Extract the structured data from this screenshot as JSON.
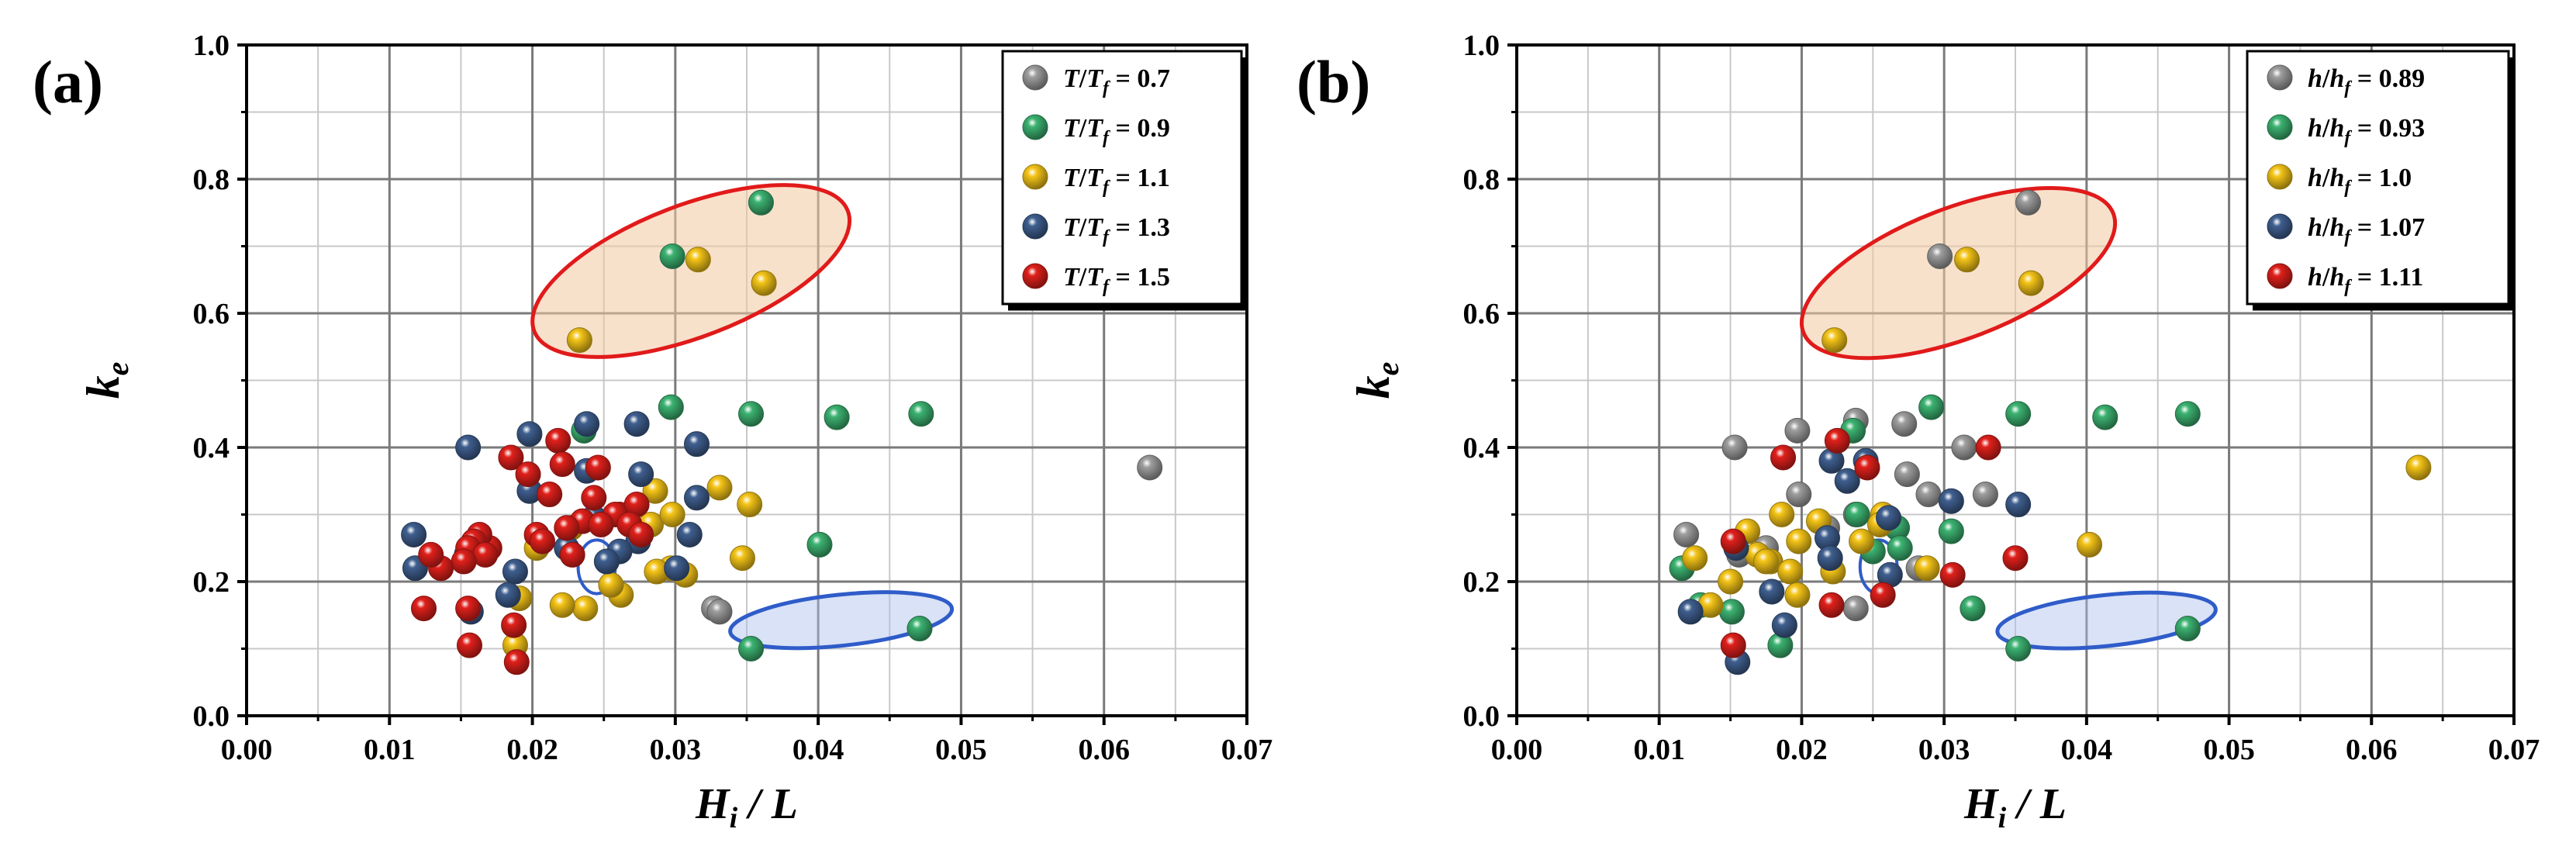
{
  "chart_data": [
    {
      "type": "scatter",
      "panel_label": "(a)",
      "xlabel": "H_i / L",
      "ylabel": "k_e",
      "xlim": [
        0.0,
        0.07
      ],
      "ylim": [
        0.0,
        1.0
      ],
      "xticks": [
        "0.00",
        "0.01",
        "0.02",
        "0.03",
        "0.04",
        "0.05",
        "0.06",
        "0.07"
      ],
      "yticks": [
        "0.0",
        "0.2",
        "0.4",
        "0.6",
        "0.8",
        "1.0"
      ],
      "grid": true,
      "legend_position": "top-right",
      "legend_var": "T",
      "legend_sub": "f",
      "series": [
        {
          "name": "T/Tf = 0.7",
          "legend_value": "= 0.7",
          "color": "#9e9e9e",
          "x": [
            0.0632,
            0.0327,
            0.0331
          ],
          "y": [
            0.37,
            0.16,
            0.155
          ]
        },
        {
          "name": "T/Tf = 0.9",
          "legend_value": "= 0.9",
          "color": "#3cb371",
          "x": [
            0.036,
            0.0298,
            0.0297,
            0.0353,
            0.0413,
            0.0472,
            0.0236,
            0.0401,
            0.0471,
            0.0353
          ],
          "y": [
            0.765,
            0.685,
            0.46,
            0.45,
            0.445,
            0.45,
            0.425,
            0.255,
            0.13,
            0.1
          ],
          "bold_legend": false
        },
        {
          "name": "T/Tf = 1.1",
          "legend_value": "= 1.1",
          "color": "#f5c518",
          "x": [
            0.0233,
            0.0316,
            0.0362,
            0.0286,
            0.0331,
            0.0352,
            0.0283,
            0.0298,
            0.0347,
            0.0307,
            0.0262,
            0.0255,
            0.0237,
            0.0221,
            0.0188,
            0.0191,
            0.0203,
            0.0227,
            0.0297,
            0.0287
          ],
          "y": [
            0.56,
            0.68,
            0.645,
            0.335,
            0.34,
            0.315,
            0.285,
            0.3,
            0.235,
            0.21,
            0.18,
            0.195,
            0.16,
            0.165,
            0.105,
            0.175,
            0.25,
            0.28,
            0.22,
            0.215
          ]
        },
        {
          "name": "T/Tf = 1.3",
          "legend_value": "= 1.3",
          "color": "#3f5f8f",
          "x": [
            0.0155,
            0.0198,
            0.0238,
            0.0273,
            0.0315,
            0.0238,
            0.0276,
            0.0198,
            0.0315,
            0.0117,
            0.031,
            0.0118,
            0.0157,
            0.0188,
            0.0183,
            0.0154,
            0.0274,
            0.0224,
            0.0243,
            0.0301,
            0.0261,
            0.0252
          ],
          "y": [
            0.4,
            0.42,
            0.435,
            0.435,
            0.405,
            0.365,
            0.36,
            0.335,
            0.325,
            0.27,
            0.27,
            0.22,
            0.155,
            0.215,
            0.18,
            0.24,
            0.26,
            0.25,
            0.295,
            0.22,
            0.245,
            0.23
          ]
        },
        {
          "name": "T/Tf = 1.5",
          "legend_value": "= 1.5",
          "color": "#e0201b",
          "x": [
            0.0218,
            0.0185,
            0.0221,
            0.0246,
            0.0197,
            0.0212,
            0.0243,
            0.0261,
            0.0273,
            0.0235,
            0.0224,
            0.017,
            0.0163,
            0.0159,
            0.0155,
            0.0167,
            0.0152,
            0.0136,
            0.0129,
            0.0124,
            0.0155,
            0.0156,
            0.0187,
            0.0189,
            0.0203,
            0.0258,
            0.0268,
            0.0276,
            0.0207,
            0.0228,
            0.0248
          ],
          "y": [
            0.41,
            0.385,
            0.375,
            0.37,
            0.36,
            0.33,
            0.325,
            0.3,
            0.315,
            0.29,
            0.28,
            0.25,
            0.27,
            0.26,
            0.25,
            0.24,
            0.23,
            0.22,
            0.24,
            0.16,
            0.16,
            0.105,
            0.135,
            0.08,
            0.27,
            0.3,
            0.285,
            0.27,
            0.26,
            0.24,
            0.285
          ]
        }
      ],
      "ellipses": [
        {
          "color": "red",
          "cx": 0.0311,
          "cy": 0.663,
          "rx": 0.01175,
          "ry": 0.098,
          "rotate": -21
        },
        {
          "color": "blue",
          "cx": 0.0416,
          "cy": 0.1425,
          "rx": 0.0078,
          "ry": 0.038,
          "rotate": -6
        },
        {
          "color": "blue-small",
          "cx": 0.0245,
          "cy": 0.222,
          "rx": 0.0013,
          "ry": 0.04,
          "rotate": 0
        }
      ]
    },
    {
      "type": "scatter",
      "panel_label": "(b)",
      "xlabel": "H_i / L",
      "ylabel": "k_e",
      "xlim": [
        0.0,
        0.07
      ],
      "ylim": [
        0.0,
        1.0
      ],
      "xticks": [
        "0.00",
        "0.01",
        "0.02",
        "0.03",
        "0.04",
        "0.05",
        "0.06",
        "0.07"
      ],
      "yticks": [
        "0.0",
        "0.2",
        "0.4",
        "0.6",
        "0.8",
        "1.0"
      ],
      "grid": true,
      "legend_position": "top-right",
      "legend_var": "h",
      "legend_sub": "f",
      "series": [
        {
          "name": "h/hf = 0.89",
          "legend_value": "= 0.89",
          "color": "#9e9e9e",
          "x": [
            0.0359,
            0.0297,
            0.0197,
            0.0238,
            0.0272,
            0.0314,
            0.0198,
            0.0274,
            0.0289,
            0.0238,
            0.0119,
            0.0156,
            0.0175,
            0.0238,
            0.0329,
            0.0218,
            0.0282,
            0.0153
          ],
          "y": [
            0.765,
            0.685,
            0.425,
            0.44,
            0.435,
            0.4,
            0.33,
            0.36,
            0.33,
            0.3,
            0.27,
            0.24,
            0.25,
            0.16,
            0.33,
            0.28,
            0.22,
            0.4
          ]
        },
        {
          "name": "h/hf = 0.93",
          "legend_value": "= 0.93",
          "color": "#3cb371",
          "x": [
            0.0291,
            0.0352,
            0.0413,
            0.0471,
            0.0236,
            0.0305,
            0.0239,
            0.0267,
            0.0269,
            0.0116,
            0.0185,
            0.0151,
            0.032,
            0.0352,
            0.0471,
            0.0129,
            0.025
          ],
          "y": [
            0.46,
            0.45,
            0.445,
            0.45,
            0.425,
            0.275,
            0.3,
            0.28,
            0.25,
            0.22,
            0.105,
            0.155,
            0.16,
            0.1,
            0.13,
            0.165,
            0.245
          ]
        },
        {
          "name": "h/hf = 1.0",
          "legend_value": "= 1.0",
          "color": "#f5c518",
          "x": [
            0.0223,
            0.0316,
            0.0361,
            0.0633,
            0.0402,
            0.0186,
            0.0162,
            0.0178,
            0.015,
            0.0192,
            0.0198,
            0.0242,
            0.0257,
            0.0169,
            0.0125,
            0.0136,
            0.0288,
            0.0212,
            0.0222,
            0.0255,
            0.0197,
            0.0175
          ],
          "y": [
            0.56,
            0.68,
            0.645,
            0.37,
            0.255,
            0.3,
            0.275,
            0.23,
            0.2,
            0.215,
            0.26,
            0.26,
            0.3,
            0.24,
            0.235,
            0.165,
            0.22,
            0.29,
            0.215,
            0.285,
            0.18,
            0.23
          ]
        },
        {
          "name": "h/hf = 1.07",
          "legend_value": "= 1.07",
          "color": "#3f5f8f",
          "x": [
            0.0245,
            0.0221,
            0.0232,
            0.0261,
            0.0305,
            0.0352,
            0.0218,
            0.0179,
            0.0188,
            0.0122,
            0.0155,
            0.022,
            0.0154,
            0.0262
          ],
          "y": [
            0.38,
            0.38,
            0.35,
            0.295,
            0.32,
            0.315,
            0.265,
            0.185,
            0.135,
            0.155,
            0.08,
            0.235,
            0.25,
            0.21
          ]
        },
        {
          "name": "h/hf = 1.11",
          "legend_value": "= 1.11",
          "color": "#e0201b",
          "x": [
            0.0225,
            0.0187,
            0.0331,
            0.0152,
            0.035,
            0.0306,
            0.0221,
            0.0257,
            0.0152,
            0.0246
          ],
          "y": [
            0.41,
            0.385,
            0.4,
            0.26,
            0.235,
            0.21,
            0.165,
            0.18,
            0.105,
            0.37
          ]
        }
      ],
      "ellipses": [
        {
          "color": "red",
          "cx": 0.031,
          "cy": 0.66,
          "rx": 0.01165,
          "ry": 0.097,
          "rotate": -21
        },
        {
          "color": "blue",
          "cx": 0.0414,
          "cy": 0.142,
          "rx": 0.0077,
          "ry": 0.038,
          "rotate": -6
        },
        {
          "color": "blue-small",
          "cx": 0.0254,
          "cy": 0.222,
          "rx": 0.0013,
          "ry": 0.04,
          "rotate": 0
        }
      ]
    }
  ]
}
